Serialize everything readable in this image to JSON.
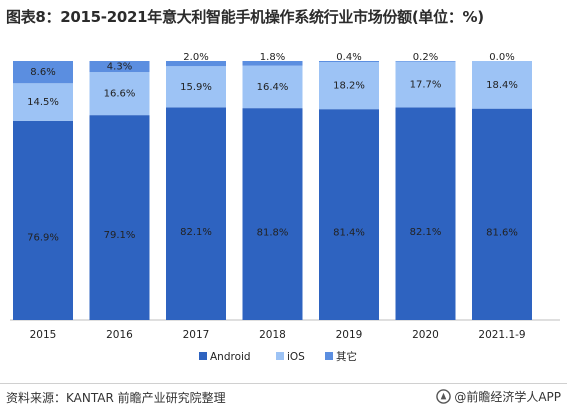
{
  "title": "图表8：2015-2021年意大利智能手机操作系统行业市场份额(单位：%)",
  "source": "资料来源：KANTAR 前瞻产业研究院整理",
  "brand": "@前瞻经济学人APP",
  "chart_data": {
    "type": "bar",
    "stacked": true,
    "categories": [
      "2015",
      "2016",
      "2017",
      "2018",
      "2019",
      "2020",
      "2021.1-9"
    ],
    "series": [
      {
        "name": "Android",
        "color": "#2e63c0",
        "values": [
          76.9,
          79.1,
          82.1,
          81.8,
          81.4,
          82.1,
          81.6
        ],
        "labels": [
          "76.9%",
          "79.1%",
          "82.1%",
          "81.8%",
          "81.4%",
          "82.1%",
          "81.6%"
        ]
      },
      {
        "name": "iOS",
        "color": "#9dc3f5",
        "values": [
          14.5,
          16.6,
          15.9,
          16.4,
          18.2,
          17.7,
          18.4
        ],
        "labels": [
          "14.5%",
          "16.6%",
          "15.9%",
          "16.4%",
          "18.2%",
          "17.7%",
          "18.4%"
        ]
      },
      {
        "name": "其它",
        "color": "#5b8ee0",
        "values": [
          8.6,
          4.3,
          2.0,
          1.8,
          0.4,
          0.2,
          0.0
        ],
        "labels": [
          "8.6%",
          "4.3%",
          "2.0%",
          "1.8%",
          "0.4%",
          "0.2%",
          "0.0%"
        ]
      }
    ],
    "ylim": [
      0,
      100
    ],
    "grid": false,
    "legend_position": "bottom"
  }
}
